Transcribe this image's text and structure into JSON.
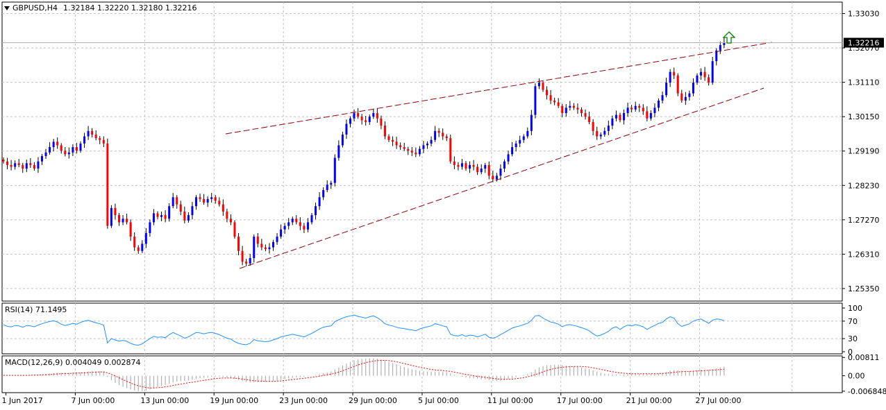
{
  "header": {
    "symbol": "GBPUSD,H4",
    "ohlc": "1.32184 1.32220 1.32180 1.32216"
  },
  "colors": {
    "bull": "#0000ff",
    "bear": "#ff0000",
    "wick": "#000000",
    "grid": "#c0c0c0",
    "trendline": "#8b0000",
    "rsi_line": "#1e90ff",
    "macd_hist": "#b0b0b0",
    "macd_signal": "#ff0000",
    "arrow": "#008000",
    "price_tag_bg": "#000000",
    "price_tag_fg": "#ffffff"
  },
  "icons": {
    "symbol_menu": "triangle-down-icon",
    "signal": "up-arrow-icon"
  },
  "chart_data": [
    {
      "type": "candlestick",
      "title": "GBPUSD,H4",
      "y_ticks": [
        "1.33030",
        "1.32070",
        "1.31110",
        "1.30150",
        "1.29190",
        "1.28230",
        "1.27270",
        "1.26310",
        "1.25350"
      ],
      "ylim": [
        1.25,
        1.3335
      ],
      "last_price": "1.32216",
      "x_labels": [
        "1 Jun 2017",
        "7 Jun 00:00",
        "13 Jun 00:00",
        "19 Jun 00:00",
        "23 Jun 00:00",
        "29 Jun 00:00",
        "5 Jul 00:00",
        "11 Jul 00:00",
        "17 Jul 00:00",
        "21 Jul 00:00",
        "27 Jul 00:00"
      ],
      "close": [
        1.289,
        1.288,
        1.2875,
        1.2885,
        1.288,
        1.287,
        1.2885,
        1.288,
        1.287,
        1.289,
        1.2905,
        1.2915,
        1.293,
        1.2945,
        1.2935,
        1.292,
        1.291,
        1.2915,
        1.293,
        1.292,
        1.294,
        1.296,
        1.2975,
        1.2965,
        1.2955,
        1.295,
        1.294,
        1.271,
        1.276,
        1.274,
        1.272,
        1.273,
        1.272,
        1.268,
        1.265,
        1.264,
        1.266,
        1.269,
        1.272,
        1.2745,
        1.2735,
        1.274,
        1.273,
        1.2765,
        1.279,
        1.277,
        1.275,
        1.2725,
        1.274,
        1.2765,
        1.279,
        1.2785,
        1.2775,
        1.2785,
        1.279,
        1.278,
        1.277,
        1.275,
        1.273,
        1.272,
        1.268,
        1.264,
        1.261,
        1.2605,
        1.262,
        1.268,
        1.266,
        1.265,
        1.2645,
        1.265,
        1.2665,
        1.268,
        1.27,
        1.271,
        1.272,
        1.273,
        1.272,
        1.271,
        1.27,
        1.272,
        1.274,
        1.2765,
        1.279,
        1.281,
        1.2825,
        1.283,
        1.29,
        1.2935,
        1.2965,
        1.2995,
        1.301,
        1.3025,
        1.3015,
        1.3005,
        1.3,
        1.3015,
        1.3025,
        1.301,
        1.299,
        1.296,
        1.295,
        1.2945,
        1.2935,
        1.293,
        1.2925,
        1.292,
        1.2915,
        1.291,
        1.2925,
        1.2935,
        1.294,
        1.295,
        1.2975,
        1.297,
        1.296,
        1.2955,
        1.289,
        1.288,
        1.2875,
        1.2885,
        1.287,
        1.288,
        1.2875,
        1.286,
        1.287,
        1.288,
        1.285,
        1.284,
        1.285,
        1.287,
        1.289,
        1.291,
        1.293,
        1.294,
        1.295,
        1.296,
        1.2975,
        1.302,
        1.31,
        1.311,
        1.309,
        1.3075,
        1.306,
        1.3055,
        1.3045,
        1.3025,
        1.304,
        1.3045,
        1.304,
        1.3035,
        1.3025,
        1.3015,
        1.3,
        1.2975,
        1.296,
        1.2965,
        1.2975,
        1.299,
        1.301,
        1.302,
        1.3005,
        1.3025,
        1.304,
        1.3035,
        1.3045,
        1.304,
        1.303,
        1.301,
        1.3025,
        1.304,
        1.306,
        1.3075,
        1.311,
        1.314,
        1.313,
        1.308,
        1.306,
        1.307,
        1.308,
        1.311,
        1.313,
        1.314,
        1.3125,
        1.311,
        1.317,
        1.32,
        1.3215,
        1.3222
      ]
    },
    {
      "type": "line",
      "title": "RSI(14) 71.1495",
      "y_ticks": [
        "100",
        "70",
        "30",
        "0"
      ],
      "ylim": [
        0,
        100
      ],
      "values": [
        62,
        58,
        57,
        60,
        59,
        56,
        60,
        59,
        57,
        61,
        64,
        67,
        69,
        71,
        68,
        63,
        60,
        62,
        65,
        63,
        67,
        70,
        72,
        69,
        66,
        64,
        61,
        20,
        30,
        27,
        24,
        26,
        24,
        19,
        16,
        15,
        18,
        24,
        30,
        35,
        33,
        34,
        32,
        39,
        44,
        40,
        36,
        31,
        34,
        39,
        44,
        43,
        41,
        43,
        44,
        42,
        39,
        35,
        31,
        29,
        23,
        19,
        17,
        16,
        19,
        28,
        25,
        24,
        23,
        24,
        27,
        30,
        34,
        36,
        38,
        40,
        38,
        36,
        34,
        38,
        42,
        47,
        52,
        56,
        58,
        59,
        69,
        73,
        77,
        80,
        82,
        84,
        81,
        79,
        77,
        80,
        82,
        78,
        72,
        64,
        61,
        59,
        56,
        54,
        53,
        51,
        50,
        48,
        52,
        55,
        57,
        59,
        64,
        62,
        59,
        57,
        40,
        37,
        36,
        39,
        35,
        38,
        37,
        34,
        37,
        40,
        33,
        31,
        34,
        39,
        44,
        49,
        54,
        57,
        59,
        62,
        65,
        72,
        82,
        83,
        77,
        72,
        68,
        66,
        63,
        57,
        61,
        62,
        60,
        58,
        55,
        52,
        48,
        41,
        36,
        38,
        42,
        47,
        54,
        57,
        51,
        57,
        61,
        59,
        62,
        60,
        57,
        51,
        56,
        60,
        65,
        67,
        75,
        80,
        77,
        64,
        58,
        61,
        64,
        70,
        73,
        75,
        70,
        65,
        72,
        75,
        74,
        71
      ]
    },
    {
      "type": "bar",
      "title": "MACD(12,26,9) 0.004049 0.002874",
      "y_ticks": [
        "0.00811",
        "0.00",
        "-0.006848"
      ],
      "ylim": [
        -0.0075,
        0.0088
      ],
      "series": [
        {
          "name": "MACD",
          "values": [
            0.0002,
            0.0001,
            0.0001,
            0.0002,
            0.0002,
            0.0002,
            0.0003,
            0.0003,
            0.0003,
            0.0004,
            0.0006,
            0.0008,
            0.001,
            0.0012,
            0.0013,
            0.0013,
            0.0013,
            0.0013,
            0.0014,
            0.0014,
            0.0015,
            0.0017,
            0.0019,
            0.002,
            0.002,
            0.002,
            0.0019,
            -0.0005,
            -0.002,
            -0.0032,
            -0.0042,
            -0.0049,
            -0.0055,
            -0.0061,
            -0.0066,
            -0.0068,
            -0.0068,
            -0.0066,
            -0.0061,
            -0.0055,
            -0.005,
            -0.0045,
            -0.0041,
            -0.0036,
            -0.003,
            -0.0026,
            -0.0024,
            -0.0023,
            -0.0021,
            -0.0018,
            -0.0014,
            -0.0011,
            -0.0009,
            -0.0007,
            -0.0005,
            -0.0004,
            -0.0004,
            -0.0005,
            -0.0008,
            -0.001,
            -0.0014,
            -0.0019,
            -0.0024,
            -0.0028,
            -0.003,
            -0.0029,
            -0.0028,
            -0.0028,
            -0.0027,
            -0.0026,
            -0.0024,
            -0.0021,
            -0.0018,
            -0.0015,
            -0.0012,
            -0.0009,
            -0.0007,
            -0.0006,
            -0.0005,
            -0.0003,
            0.0,
            0.0003,
            0.0007,
            0.0011,
            0.0015,
            0.0019,
            0.0028,
            0.0036,
            0.0045,
            0.0054,
            0.0062,
            0.0069,
            0.0073,
            0.0075,
            0.0076,
            0.0077,
            0.0077,
            0.0076,
            0.0073,
            0.0068,
            0.0062,
            0.0056,
            0.005,
            0.0044,
            0.0039,
            0.0034,
            0.0029,
            0.0025,
            0.0022,
            0.002,
            0.0018,
            0.0017,
            0.0018,
            0.0018,
            0.0017,
            0.0016,
            0.001,
            0.0004,
            -0.0001,
            -0.0004,
            -0.0008,
            -0.001,
            -0.0012,
            -0.0014,
            -0.0016,
            -0.0016,
            -0.0019,
            -0.0022,
            -0.0023,
            -0.0022,
            -0.0019,
            -0.0015,
            -0.0011,
            -0.0006,
            -0.0002,
            0.0002,
            0.0007,
            0.0015,
            0.0027,
            0.0037,
            0.0043,
            0.0046,
            0.0048,
            0.0049,
            0.0049,
            0.0047,
            0.0045,
            0.0044,
            0.0042,
            0.004,
            0.0037,
            0.0033,
            0.0029,
            0.0024,
            0.0018,
            0.0013,
            0.0009,
            0.0007,
            0.0006,
            0.0006,
            0.0005,
            0.0006,
            0.0007,
            0.0008,
            0.0009,
            0.001,
            0.001,
            0.0009,
            0.0009,
            0.001,
            0.0011,
            0.0013,
            0.0017,
            0.0022,
            0.0025,
            0.0024,
            0.0022,
            0.0021,
            0.0021,
            0.0023,
            0.0025,
            0.0027,
            0.0027,
            0.0026,
            0.0029,
            0.0033,
            0.0037,
            0.004
          ]
        },
        {
          "name": "Signal",
          "values": [
            0.0002,
            0.0002,
            0.0002,
            0.0002,
            0.0002,
            0.0002,
            0.0002,
            0.0002,
            0.0003,
            0.0003,
            0.0004,
            0.0004,
            0.0005,
            0.0007,
            0.0008,
            0.0009,
            0.001,
            0.001,
            0.0011,
            0.0012,
            0.0012,
            0.0013,
            0.0014,
            0.0015,
            0.0016,
            0.0017,
            0.0017,
            0.0013,
            0.0006,
            -0.0001,
            -0.0009,
            -0.0017,
            -0.0025,
            -0.0032,
            -0.0039,
            -0.0045,
            -0.0049,
            -0.0053,
            -0.0054,
            -0.0054,
            -0.0053,
            -0.0052,
            -0.0049,
            -0.0047,
            -0.0043,
            -0.004,
            -0.0037,
            -0.0034,
            -0.0031,
            -0.0029,
            -0.0026,
            -0.0023,
            -0.002,
            -0.0018,
            -0.0015,
            -0.0013,
            -0.0011,
            -0.001,
            -0.001,
            -0.001,
            -0.0011,
            -0.0012,
            -0.0015,
            -0.0017,
            -0.002,
            -0.0022,
            -0.0023,
            -0.0024,
            -0.0025,
            -0.0025,
            -0.0025,
            -0.0024,
            -0.0023,
            -0.0021,
            -0.0019,
            -0.0017,
            -0.0015,
            -0.0013,
            -0.0011,
            -0.0009,
            -0.0007,
            -0.0005,
            -0.0002,
            0.0001,
            0.0004,
            0.0007,
            0.0011,
            0.0016,
            0.0022,
            0.0028,
            0.0035,
            0.0041,
            0.0048,
            0.0053,
            0.0058,
            0.0062,
            0.0065,
            0.0067,
            0.0068,
            0.0068,
            0.0067,
            0.0065,
            0.0062,
            0.0058,
            0.0054,
            0.005,
            0.0046,
            0.0042,
            0.0038,
            0.0035,
            0.0031,
            0.0028,
            0.0026,
            0.0024,
            0.0023,
            0.0021,
            0.0019,
            0.0016,
            0.0013,
            0.0009,
            0.0006,
            0.0003,
            0.0,
            -0.0003,
            -0.0005,
            -0.0007,
            -0.0009,
            -0.0012,
            -0.0014,
            -0.0015,
            -0.0016,
            -0.0016,
            -0.0015,
            -0.0013,
            -0.0011,
            -0.0008,
            -0.0005,
            -0.0001,
            0.0005,
            0.0011,
            0.0017,
            0.0023,
            0.0028,
            0.0032,
            0.0035,
            0.0038,
            0.0039,
            0.004,
            0.0041,
            0.0041,
            0.0041,
            0.004,
            0.0038,
            0.0035,
            0.0032,
            0.0028,
            0.0025,
            0.0021,
            0.0018,
            0.0015,
            0.0013,
            0.0011,
            0.001,
            0.0009,
            0.0009,
            0.0009,
            0.0009,
            0.0009,
            0.0009,
            0.0009,
            0.0009,
            0.001,
            0.0011,
            0.0013,
            0.0015,
            0.0017,
            0.0018,
            0.0019,
            0.0019,
            0.002,
            0.0021,
            0.0022,
            0.0023,
            0.0024,
            0.0025,
            0.0026,
            0.0027,
            0.0029
          ]
        }
      ]
    }
  ]
}
